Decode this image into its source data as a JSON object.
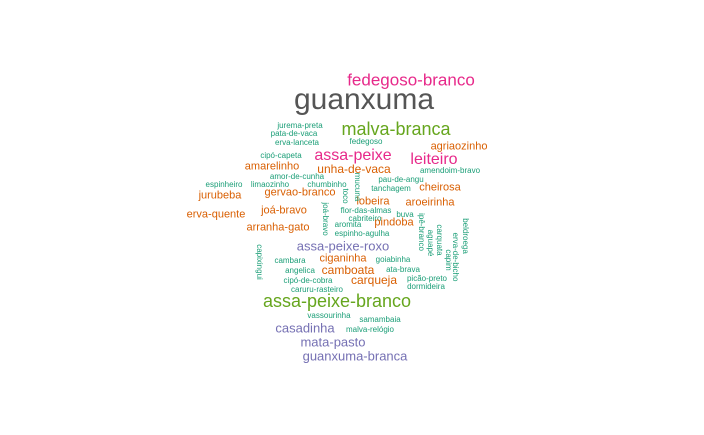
{
  "palette": {
    "magenta": "#e7298a",
    "gray": "#555555",
    "green": "#66a61e",
    "orange": "#d95f02",
    "teal": "#1b9e77",
    "purple": "#7570b3"
  },
  "words": [
    {
      "text": "fedegoso-branco",
      "color": "magenta"
    },
    {
      "text": "guanxuma",
      "color": "gray"
    },
    {
      "text": "jurema-preta",
      "color": "teal"
    },
    {
      "text": "pata-de-vaca",
      "color": "teal"
    },
    {
      "text": "erva-lanceta",
      "color": "teal"
    },
    {
      "text": "malva-branca",
      "color": "green"
    },
    {
      "text": "fedegoso",
      "color": "teal"
    },
    {
      "text": "agriaozinho",
      "color": "orange"
    },
    {
      "text": "cipó-capeta",
      "color": "teal"
    },
    {
      "text": "assa-peixe",
      "color": "magenta"
    },
    {
      "text": "leiteiro",
      "color": "magenta"
    },
    {
      "text": "amarelinho",
      "color": "orange"
    },
    {
      "text": "unha-de-vaca",
      "color": "orange"
    },
    {
      "text": "amendoim-bravo",
      "color": "teal"
    },
    {
      "text": "amor-de-cunha",
      "color": "teal"
    },
    {
      "text": "pau-de-angu",
      "color": "teal"
    },
    {
      "text": "espinheiro",
      "color": "teal"
    },
    {
      "text": "limaozinho",
      "color": "teal"
    },
    {
      "text": "chumbinho",
      "color": "teal"
    },
    {
      "text": "tanchagem",
      "color": "teal"
    },
    {
      "text": "cheirosa",
      "color": "orange"
    },
    {
      "text": "jurubeba",
      "color": "orange"
    },
    {
      "text": "gervao-branco",
      "color": "orange"
    },
    {
      "text": "lobeira",
      "color": "orange"
    },
    {
      "text": "aroeirinha",
      "color": "orange"
    },
    {
      "text": "erva-quente",
      "color": "orange"
    },
    {
      "text": "joá-bravo",
      "color": "orange"
    },
    {
      "text": "flor-das-almas",
      "color": "teal"
    },
    {
      "text": "buva",
      "color": "teal"
    },
    {
      "text": "cabriteiro",
      "color": "teal"
    },
    {
      "text": "arranha-gato",
      "color": "orange"
    },
    {
      "text": "aromita",
      "color": "teal"
    },
    {
      "text": "pindoba",
      "color": "orange"
    },
    {
      "text": "espinho-agulha",
      "color": "teal"
    },
    {
      "text": "toco",
      "color": "teal"
    },
    {
      "text": "mucuna",
      "color": "teal"
    },
    {
      "text": "joá-bravo",
      "color": "teal"
    },
    {
      "text": "ipê-branco",
      "color": "teal"
    },
    {
      "text": "aguapé",
      "color": "teal"
    },
    {
      "text": "carquata",
      "color": "teal"
    },
    {
      "text": "capim",
      "color": "teal"
    },
    {
      "text": "erva-de-bicho",
      "color": "teal"
    },
    {
      "text": "beldroega",
      "color": "teal"
    },
    {
      "text": "assa-peixe-roxo",
      "color": "purple"
    },
    {
      "text": "capixingui",
      "color": "teal"
    },
    {
      "text": "cambara",
      "color": "teal"
    },
    {
      "text": "ciganinha",
      "color": "orange"
    },
    {
      "text": "goiabinha",
      "color": "teal"
    },
    {
      "text": "angelica",
      "color": "teal"
    },
    {
      "text": "camboata",
      "color": "orange"
    },
    {
      "text": "ata-brava",
      "color": "teal"
    },
    {
      "text": "cipó-de-cobra",
      "color": "teal"
    },
    {
      "text": "carqueja",
      "color": "orange"
    },
    {
      "text": "picão-preto",
      "color": "teal"
    },
    {
      "text": "caruru-rasteiro",
      "color": "teal"
    },
    {
      "text": "dormideira",
      "color": "teal"
    },
    {
      "text": "assa-peixe-branco",
      "color": "green"
    },
    {
      "text": "vassourinha",
      "color": "teal"
    },
    {
      "text": "samambaia",
      "color": "teal"
    },
    {
      "text": "casadinha",
      "color": "purple"
    },
    {
      "text": "malva-relógio",
      "color": "teal"
    },
    {
      "text": "mata-pasto",
      "color": "purple"
    },
    {
      "text": "guanxuma-branca",
      "color": "purple"
    }
  ]
}
